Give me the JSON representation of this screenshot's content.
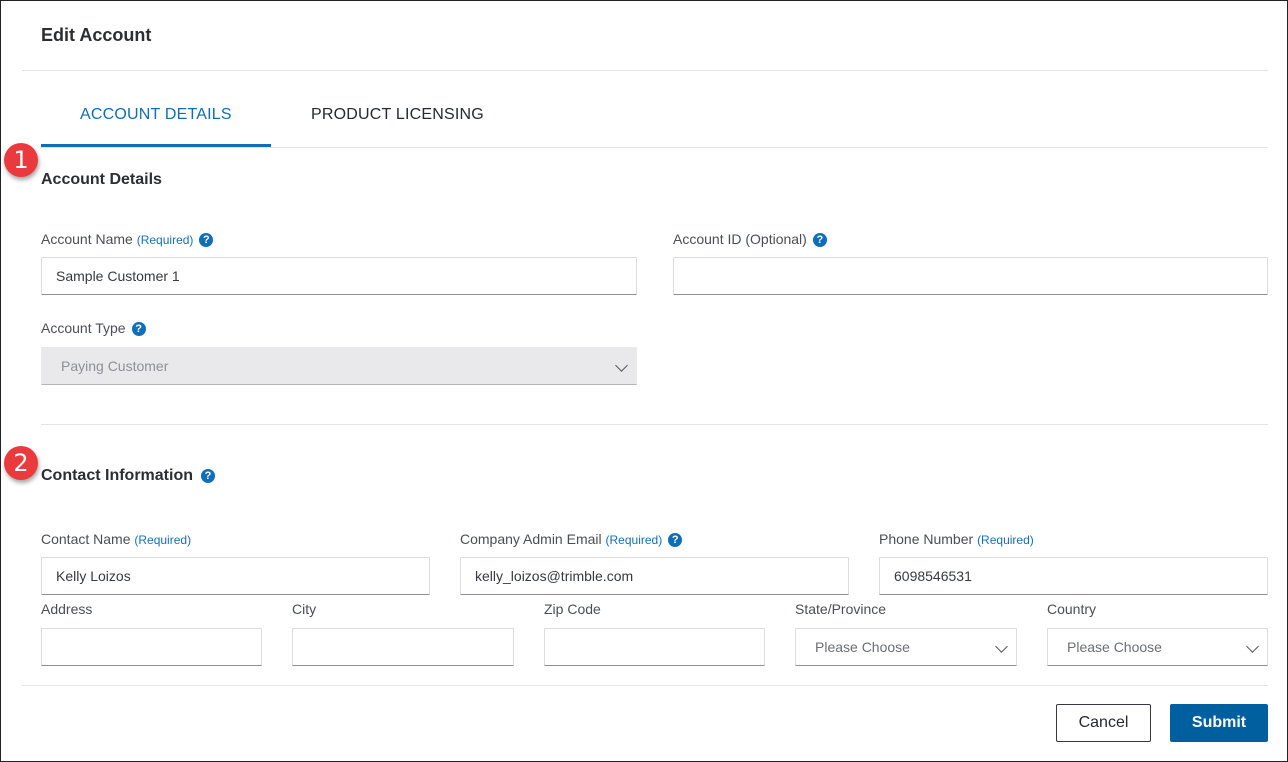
{
  "dialog": {
    "title": "Edit Account"
  },
  "tabs": [
    {
      "label": "ACCOUNT DETAILS",
      "active": true
    },
    {
      "label": "PRODUCT LICENSING",
      "active": false
    }
  ],
  "badges": [
    "1",
    "2"
  ],
  "account_details": {
    "heading": "Account Details",
    "account_name": {
      "label": "Account Name",
      "required": "(Required)",
      "value": "Sample Customer 1"
    },
    "account_id": {
      "label": "Account ID (Optional)",
      "value": ""
    },
    "account_type": {
      "label": "Account Type",
      "value": "Paying Customer"
    }
  },
  "contact": {
    "heading": "Contact Information",
    "contact_name": {
      "label": "Contact Name",
      "required": "(Required)",
      "value": "Kelly Loizos"
    },
    "admin_email": {
      "label": "Company Admin Email",
      "required": "(Required)",
      "value": "kelly_loizos@trimble.com"
    },
    "phone": {
      "label": "Phone Number",
      "required": "(Required)",
      "value": "6098546531"
    },
    "address": {
      "label": "Address",
      "value": ""
    },
    "city": {
      "label": "City",
      "value": ""
    },
    "zip": {
      "label": "Zip Code",
      "value": ""
    },
    "state": {
      "label": "State/Province",
      "value": "Please Choose"
    },
    "country": {
      "label": "Country",
      "value": "Please Choose"
    }
  },
  "footer": {
    "cancel": "Cancel",
    "submit": "Submit"
  },
  "colors": {
    "accent": "#0e6eb8",
    "submit": "#005f9e",
    "badge": "#ea3a3d"
  }
}
